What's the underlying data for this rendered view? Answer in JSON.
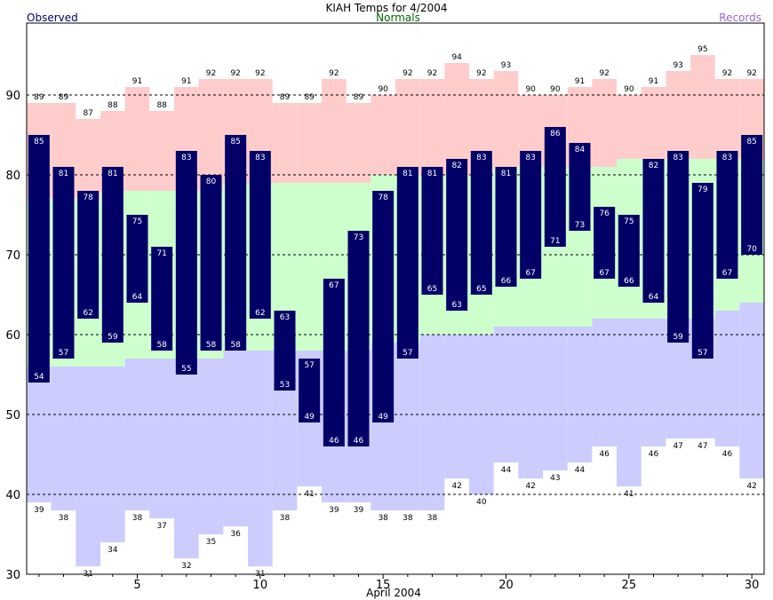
{
  "chart_data": {
    "type": "bar",
    "title": "KIAH Temps for 4/2004",
    "xlabel": "April 2004",
    "ylabel": "",
    "legend": {
      "observed": "Observed",
      "normals": "Normals",
      "records": "Records"
    },
    "colors": {
      "observed": "#000066",
      "normals_band": "#ccffcc",
      "normals_label": "#006600",
      "records_high_band": "#ffcccc",
      "records_low_band": "#ccccff",
      "records_label": "#9966cc",
      "observed_label": "#000066",
      "gridline": "#000000"
    },
    "ylim": [
      30,
      99
    ],
    "yticks": [
      30,
      40,
      50,
      60,
      70,
      80,
      90
    ],
    "xlim": [
      0.5,
      30.5
    ],
    "xticks": [
      5,
      10,
      15,
      20,
      25,
      30
    ],
    "grid": "dashed horizontal at 40, 50, 60, 70, 80, 90",
    "days": [
      1,
      2,
      3,
      4,
      5,
      6,
      7,
      8,
      9,
      10,
      11,
      12,
      13,
      14,
      15,
      16,
      17,
      18,
      19,
      20,
      21,
      22,
      23,
      24,
      25,
      26,
      27,
      28,
      29,
      30
    ],
    "observed_high": [
      85,
      81,
      78,
      81,
      75,
      71,
      83,
      80,
      85,
      83,
      63,
      57,
      67,
      73,
      78,
      81,
      81,
      82,
      83,
      81,
      83,
      86,
      84,
      76,
      75,
      82,
      83,
      79,
      83,
      85
    ],
    "observed_low": [
      54,
      57,
      62,
      59,
      64,
      58,
      55,
      58,
      58,
      62,
      53,
      49,
      46,
      46,
      49,
      57,
      65,
      63,
      65,
      66,
      67,
      71,
      73,
      67,
      66,
      64,
      59,
      57,
      67,
      70
    ],
    "record_high": [
      89,
      89,
      87,
      88,
      91,
      88,
      91,
      92,
      92,
      92,
      89,
      89,
      92,
      89,
      90,
      92,
      92,
      94,
      92,
      93,
      90,
      90,
      91,
      92,
      90,
      91,
      93,
      95,
      92,
      92
    ],
    "record_low": [
      39,
      38,
      31,
      34,
      38,
      37,
      32,
      35,
      36,
      31,
      38,
      41,
      39,
      39,
      38,
      38,
      38,
      42,
      40,
      44,
      42,
      43,
      44,
      46,
      41,
      46,
      47,
      47,
      46,
      42
    ],
    "normal_high": [
      77,
      77,
      77,
      78,
      78,
      78,
      78,
      78,
      79,
      79,
      79,
      79,
      79,
      79,
      80,
      80,
      80,
      80,
      80,
      81,
      81,
      81,
      81,
      81,
      82,
      82,
      82,
      82,
      82,
      82
    ],
    "normal_low": [
      56,
      56,
      56,
      56,
      57,
      57,
      57,
      57,
      58,
      58,
      58,
      58,
      58,
      58,
      59,
      59,
      60,
      60,
      60,
      61,
      61,
      61,
      61,
      62,
      62,
      62,
      62,
      62,
      63,
      64
    ]
  }
}
